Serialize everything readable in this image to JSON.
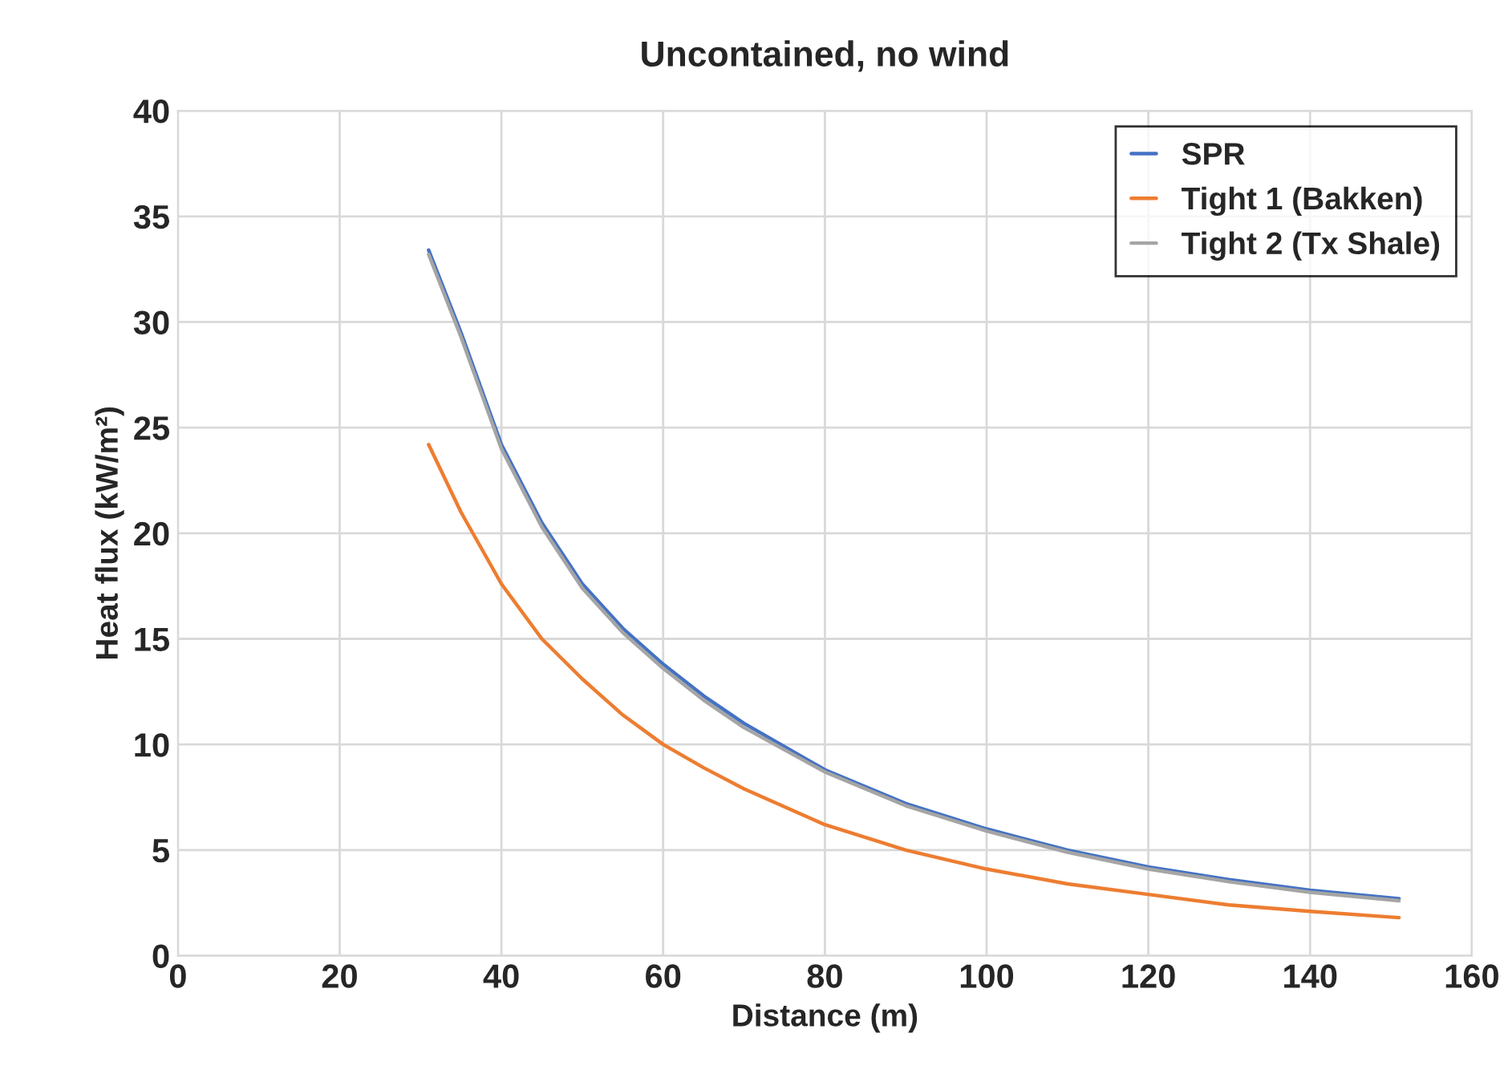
{
  "chart_data": {
    "type": "line",
    "title": "Uncontained, no wind",
    "xlabel": "Distance (m)",
    "ylabel": "Heat flux (kW/m²)",
    "x": [
      31,
      35,
      40,
      45,
      50,
      55,
      60,
      65,
      70,
      80,
      90,
      100,
      110,
      120,
      130,
      140,
      151
    ],
    "series": [
      {
        "name": "SPR",
        "color": "#4472c4",
        "values": [
          33.4,
          29.5,
          24.2,
          20.5,
          17.6,
          15.5,
          13.8,
          12.3,
          11.0,
          8.8,
          7.2,
          6.0,
          5.0,
          4.2,
          3.6,
          3.1,
          2.7
        ]
      },
      {
        "name": "Tight 1 (Bakken)",
        "color": "#ed7d31",
        "values": [
          24.2,
          21.0,
          17.6,
          15.0,
          13.1,
          11.4,
          10.0,
          8.9,
          7.9,
          6.2,
          5.0,
          4.1,
          3.4,
          2.9,
          2.4,
          2.1,
          1.8
        ]
      },
      {
        "name": "Tight 2 (Tx Shale)",
        "color": "#a5a5a5",
        "values": [
          33.2,
          29.3,
          24.0,
          20.3,
          17.4,
          15.3,
          13.6,
          12.1,
          10.8,
          8.7,
          7.1,
          5.9,
          4.9,
          4.1,
          3.5,
          3.0,
          2.6
        ]
      }
    ],
    "xlim": [
      0,
      160
    ],
    "xticks": [
      0,
      20,
      40,
      60,
      80,
      100,
      120,
      140,
      160
    ],
    "ylim": [
      0,
      40
    ],
    "yticks": [
      0,
      5,
      10,
      15,
      20,
      25,
      30,
      35,
      40
    ],
    "grid": true,
    "legend": "top right",
    "marker": "none",
    "line_style": "solid"
  }
}
